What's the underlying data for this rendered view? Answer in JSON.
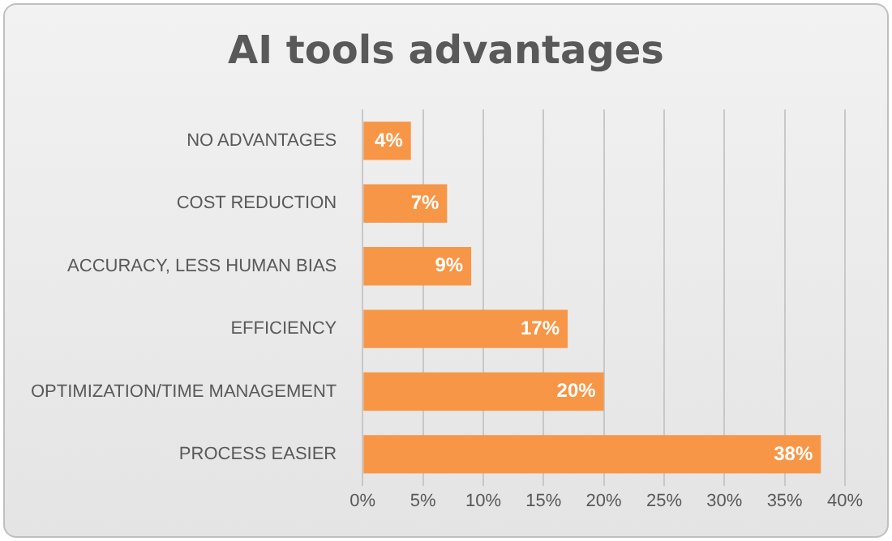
{
  "chart_data": {
    "type": "bar",
    "orientation": "horizontal",
    "title": "AI tools advantages",
    "categories": [
      "NO ADVANTAGES",
      "COST REDUCTION",
      "ACCURACY, LESS HUMAN BIAS",
      "EFFICIENCY",
      "OPTIMIZATION/TIME MANAGEMENT",
      "PROCESS EASIER"
    ],
    "values": [
      4,
      7,
      9,
      17,
      20,
      38
    ],
    "color": "#f79646",
    "value_labels": [
      "4%",
      "7%",
      "9%",
      "17%",
      "20%",
      "38%"
    ],
    "xlim": [
      0,
      40
    ],
    "xticks": [
      {
        "value": 0,
        "label": "0%"
      },
      {
        "value": 5,
        "label": "5%"
      },
      {
        "value": 10,
        "label": "10%"
      },
      {
        "value": 15,
        "label": "15%"
      },
      {
        "value": 20,
        "label": "20%"
      },
      {
        "value": 25,
        "label": "25%"
      },
      {
        "value": 30,
        "label": "30%"
      },
      {
        "value": 35,
        "label": "35%"
      },
      {
        "value": 40,
        "label": "40%"
      }
    ],
    "grid": "x",
    "legend": false
  }
}
